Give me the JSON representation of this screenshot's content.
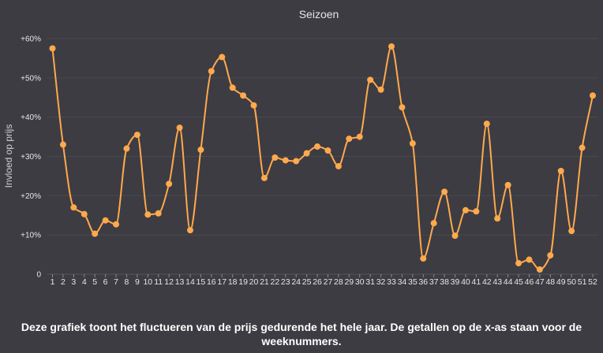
{
  "chart_data": {
    "type": "line",
    "title": "Seizoen",
    "ylabel": "Invloed op prijs",
    "xlabel": "",
    "ylim": [
      0,
      60
    ],
    "yticks": [
      {
        "value": 0,
        "label": "0"
      },
      {
        "value": 10,
        "label": "+10%"
      },
      {
        "value": 20,
        "label": "+20%"
      },
      {
        "value": 30,
        "label": "+30%"
      },
      {
        "value": 40,
        "label": "+40%"
      },
      {
        "value": 50,
        "label": "+50%"
      },
      {
        "value": 60,
        "label": "+60%"
      }
    ],
    "grid": true,
    "series": [
      {
        "color": "#ffa94d",
        "x": [
          "1",
          "2",
          "3",
          "4",
          "5",
          "6",
          "7",
          "8",
          "9",
          "10",
          "11",
          "12",
          "13",
          "14",
          "15",
          "16",
          "17",
          "18",
          "19",
          "20",
          "21",
          "22",
          "23",
          "24",
          "25",
          "26",
          "27",
          "28",
          "29",
          "30",
          "31",
          "32",
          "33",
          "34",
          "35",
          "36",
          "37",
          "38",
          "39",
          "40",
          "41",
          "42",
          "43",
          "44",
          "45",
          "46",
          "47",
          "48",
          "49",
          "50",
          "51",
          "52"
        ],
        "values": [
          57.5,
          33,
          17,
          15.3,
          10.3,
          13.7,
          12.7,
          32,
          35.5,
          15.2,
          15.5,
          23,
          37.3,
          11.2,
          31.7,
          51.7,
          55.3,
          47.5,
          45.5,
          43,
          24.5,
          29.7,
          29,
          28.8,
          30.8,
          32.5,
          31.5,
          27.5,
          34.5,
          35,
          49.5,
          47,
          58,
          42.5,
          33.3,
          4,
          13,
          21,
          9.8,
          16.3,
          16,
          38.3,
          14.2,
          22.7,
          2.8,
          3.7,
          1.2,
          4.8,
          26.3,
          11,
          32.2,
          45.5
        ]
      }
    ]
  },
  "caption": "Deze grafiek toont het fluctueren van de prijs gedurende het hele jaar. De getallen op de x-as staan voor de weeknummers."
}
